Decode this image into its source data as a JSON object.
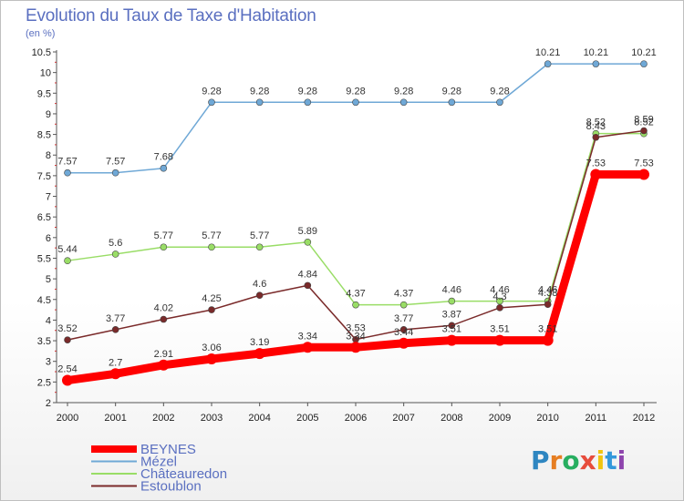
{
  "header": {
    "title": "Evolution du Taux de Taxe d'Habitation",
    "unit": "(en %)"
  },
  "logo": {
    "text": "Proxiti",
    "letters": [
      "P",
      "r",
      "o",
      "x",
      "i",
      "t",
      "i"
    ],
    "colors": [
      "#2e86c1",
      "#e67e22",
      "#27ae60",
      "#e74c3c",
      "#f1c40f",
      "#3498db",
      "#8e44ad"
    ]
  },
  "chart_data": {
    "type": "line",
    "title": "Evolution du Taux de Taxe d'Habitation",
    "ylabel": "(en %)",
    "xlabel": "",
    "x": [
      "2000",
      "2001",
      "2002",
      "2003",
      "2004",
      "2005",
      "2006",
      "2007",
      "2008",
      "2009",
      "2010",
      "2011",
      "2012"
    ],
    "ylim": [
      2,
      10.5
    ],
    "yticks": [
      "2",
      "2.5",
      "3",
      "3.5",
      "4",
      "4.5",
      "5",
      "5.5",
      "6",
      "6.5",
      "7",
      "7.5",
      "8",
      "8.5",
      "9",
      "9.5",
      "10",
      "10.5"
    ],
    "grid": false,
    "legend_position": "bottom-left",
    "series": [
      {
        "name": "BEYNES",
        "color": "#ff0000",
        "width": 9,
        "values": [
          2.54,
          2.7,
          2.91,
          3.06,
          3.19,
          3.34,
          3.34,
          3.44,
          3.51,
          3.51,
          3.51,
          7.53,
          7.53
        ],
        "labels": [
          "2.54",
          "2.7",
          "2.91",
          "3.06",
          "3.19",
          "3.34",
          "3.34",
          "3.44",
          "3.51",
          "3.51",
          "3.51",
          "7.53",
          "7.53"
        ]
      },
      {
        "name": "Mézel",
        "color": "#6fa8d6",
        "width": 1.5,
        "values": [
          7.57,
          7.57,
          7.68,
          9.28,
          9.28,
          9.28,
          9.28,
          9.28,
          9.28,
          9.28,
          10.21,
          10.21,
          10.21
        ],
        "labels": [
          "7.57",
          "7.57",
          "7.68",
          "9.28",
          "9.28",
          "9.28",
          "9.28",
          "9.28",
          "9.28",
          "9.28",
          "10.21",
          "10.21",
          "10.21"
        ]
      },
      {
        "name": "Châteauredon",
        "color": "#99dd66",
        "width": 1.5,
        "values": [
          5.44,
          5.6,
          5.77,
          5.77,
          5.77,
          5.89,
          4.37,
          4.37,
          4.46,
          4.46,
          4.46,
          8.52,
          8.52
        ],
        "labels": [
          "5.44",
          "5.6",
          "5.77",
          "5.77",
          "5.77",
          "5.89",
          "4.37",
          "4.37",
          "4.46",
          "4.46",
          "4.46",
          "8.52",
          "8.52"
        ]
      },
      {
        "name": "Estoublon",
        "color": "#7a2a2a",
        "width": 1.5,
        "values": [
          3.52,
          3.77,
          4.02,
          4.25,
          4.6,
          4.84,
          3.53,
          3.77,
          3.87,
          4.3,
          4.38,
          8.43,
          8.59
        ],
        "labels": [
          "3.52",
          "3.77",
          "4.02",
          "4.25",
          "4.6",
          "4.84",
          "3.53",
          "3.77",
          "3.87",
          "4.3",
          "4.38",
          "8.43",
          "8.59"
        ]
      }
    ]
  }
}
